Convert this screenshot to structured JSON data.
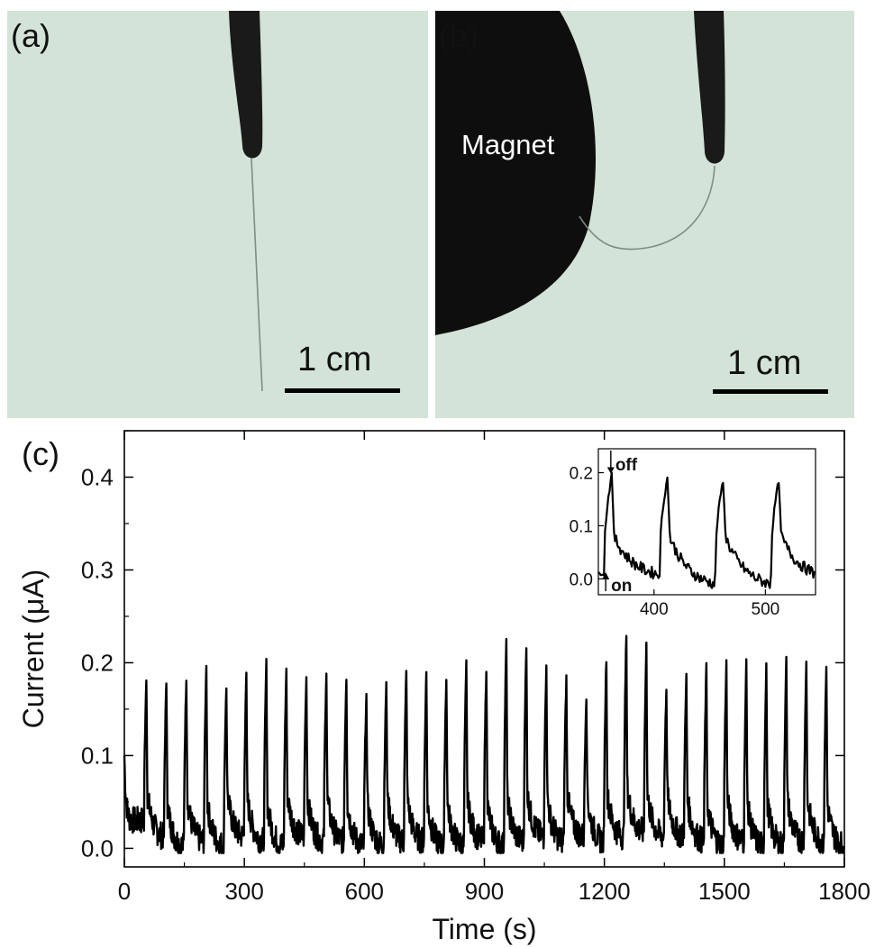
{
  "panels": {
    "a": {
      "label": "(a)",
      "scale_bar": "1 cm"
    },
    "b": {
      "label": "(b)",
      "magnet_label": "Magnet",
      "scale_bar": "1 cm"
    },
    "c": {
      "label": "(c)"
    }
  },
  "colors": {
    "photo_background": "#d3e3d7",
    "electrode": "#1a1a1a",
    "magnet": "#0e0e0e",
    "trace": "#000000"
  },
  "chart_data": {
    "type": "line",
    "xlabel": "Time (s)",
    "ylabel": "Current (μA)",
    "xlim": [
      0,
      1800
    ],
    "ylim": [
      -0.02,
      0.45
    ],
    "x_ticks": [
      0,
      300,
      600,
      900,
      1200,
      1500,
      1800
    ],
    "y_ticks": [
      0.0,
      0.1,
      0.2,
      0.3,
      0.4
    ],
    "x_tick_labels": [
      "0",
      "300",
      "600",
      "900",
      "1200",
      "1500",
      "1800"
    ],
    "y_tick_labels": [
      "0.0",
      "0.1",
      "0.2",
      "0.3",
      "0.4"
    ],
    "period_s": 50,
    "series": [
      {
        "peak_times": [
          55,
          105,
          155,
          205,
          255,
          305,
          355,
          405,
          455,
          505,
          555,
          605,
          655,
          705,
          755,
          805,
          855,
          905,
          955,
          1005,
          1055,
          1105,
          1155,
          1205,
          1255,
          1305,
          1355,
          1405,
          1455,
          1505,
          1555,
          1605,
          1655,
          1705,
          1755
        ],
        "peak_values": [
          0.185,
          0.18,
          0.185,
          0.2,
          0.175,
          0.185,
          0.2,
          0.19,
          0.185,
          0.19,
          0.185,
          0.165,
          0.18,
          0.195,
          0.19,
          0.185,
          0.2,
          0.195,
          0.225,
          0.22,
          0.2,
          0.185,
          0.165,
          0.205,
          0.23,
          0.22,
          0.17,
          0.185,
          0.195,
          0.2,
          0.2,
          0.195,
          0.205,
          0.2,
          0.195
        ],
        "baseline_values": [
          0.01,
          0.0,
          0.005,
          0.0,
          0.01,
          0.005,
          0.0,
          0.01,
          0.005,
          0.005,
          0.0,
          0.0,
          0.005,
          0.005,
          0.0,
          0.0,
          0.005,
          0.0,
          0.005,
          0.01,
          0.005,
          0.01,
          0.005,
          0.01,
          0.015,
          0.01,
          0.01,
          0.005,
          0.0,
          0.005,
          0.0,
          0.0,
          0.005,
          0.005,
          0.0
        ]
      }
    ],
    "inset": {
      "type": "line",
      "xlim": [
        350,
        545
      ],
      "ylim": [
        -0.03,
        0.245
      ],
      "x_ticks": [
        400,
        500
      ],
      "y_ticks": [
        0.0,
        0.1,
        0.2
      ],
      "x_tick_labels": [
        "400",
        "500"
      ],
      "y_tick_labels": [
        "0.0",
        "0.1",
        "0.2"
      ],
      "annotations": [
        "off",
        "on"
      ],
      "on_times": [
        355,
        405,
        455,
        505
      ],
      "off_times": [
        362,
        412,
        462,
        512
      ],
      "peak_values": [
        0.195,
        0.19,
        0.185,
        0.185
      ],
      "baseline_values": [
        0.0,
        -0.02,
        -0.02,
        -0.005
      ]
    }
  }
}
